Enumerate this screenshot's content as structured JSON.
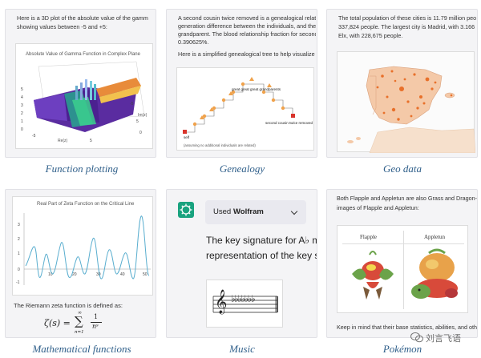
{
  "cards": {
    "function_plotting": {
      "caption": "Function plotting",
      "text": [
        "Here is a 3D plot of the absolute value of the gamm",
        "showing values between -5 and +5:"
      ],
      "plot_title": "Absolute Value of Gamma Function in Complex Plane",
      "axis_re": "Re(z)",
      "axis_im": "Im(z)",
      "ticks": [
        "5",
        "4",
        "3",
        "2",
        "1",
        "0",
        "-5",
        "5",
        "0",
        "5",
        "-5"
      ]
    },
    "genealogy": {
      "caption": "Genealogy",
      "text": [
        "A second cousin twice removed is a genealogical relatio",
        "generation difference between the individuals, and they",
        "grandparent. The blood relationship fraction for second",
        "0.390625%.",
        "Here is a simplified genealogical tree to help visualize th"
      ],
      "node_top": "great great great grandparents",
      "node_right": "second cousin twice removed",
      "node_self": "self",
      "footnote": "(assuming no additional individuals are related)"
    },
    "geo_data": {
      "caption": "Geo data",
      "text": [
        "The total population of these cities is 11.79 million people,",
        "337,824 people. The largest city is Madrid, with 3.166 mil",
        "Elx, with 228,675 people."
      ]
    },
    "math_functions": {
      "caption": "Mathematical functions",
      "plot_title": "Real Part of Zeta Function on the Critical Line",
      "y_ticks": [
        "3",
        "2",
        "1",
        "0",
        "-1"
      ],
      "x_ticks": [
        "10",
        "20",
        "30",
        "40",
        "50"
      ],
      "text": "The Riemann zeta function is defined as:",
      "formula_lhs": "ζ(s) =",
      "formula_sum_top": "∞",
      "formula_sum": "∑",
      "formula_sum_bottom": "n=1",
      "formula_num": "1",
      "formula_den": "nˢ"
    },
    "music": {
      "caption": "Music",
      "chip_prefix": "Used ",
      "chip_bold": "Wolfram",
      "text": [
        "The key signature for A♭ min",
        "representation of the key sig"
      ],
      "clef": "𝄞",
      "flats": "♭♭♭♭♭♭♭"
    },
    "pokemon": {
      "caption": "Pokémon",
      "text": [
        "Both Flapple and Appletun are also Grass and Dragon-",
        "images of Flapple and Appletun:"
      ],
      "col1": "Flapple",
      "col2": "Appletun",
      "footer": "Keep in mind that their base statistics, abilities, and oth"
    }
  },
  "watermark": "刘言飞语",
  "colors": {
    "caption": "#2f5f8a",
    "card_bg": "#f4f4f6",
    "gpt_green": "#19a37f",
    "map_land": "#f4c9a8",
    "city_dot": "#e8702a",
    "zeta_line": "#5aaecf",
    "genealogy_node": "#f0a24b",
    "genealogy_marker": "#d9342b"
  }
}
